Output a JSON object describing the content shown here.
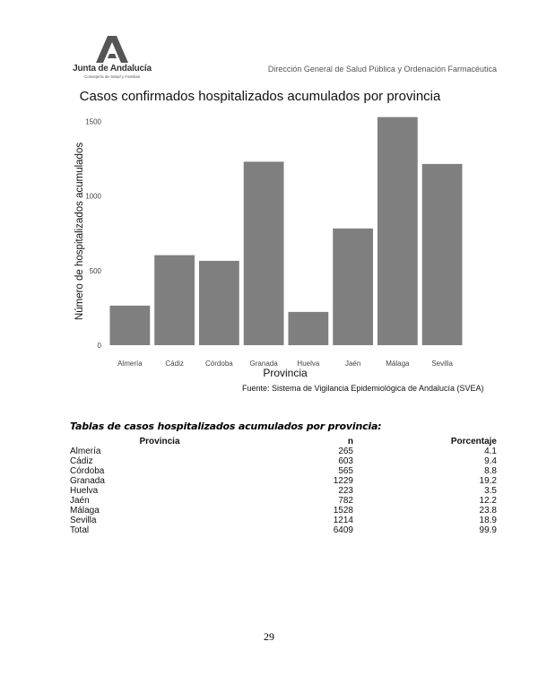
{
  "header": {
    "logo_name": "Junta de Andalucía",
    "logo_subtitle": "Consejería de Salud y Familias",
    "direction": "Dirección General de Salud Pública y Ordenación Farmacéutica"
  },
  "chart_data": {
    "type": "bar",
    "title": "Casos confirmados hospitalizados acumulados por provincia",
    "xlabel": "Provincia",
    "ylabel": "Número de hospitalizados acumulados",
    "categories": [
      "Almería",
      "Cádiz",
      "Córdoba",
      "Granada",
      "Huelva",
      "Jaén",
      "Málaga",
      "Sevilla"
    ],
    "values": [
      265,
      603,
      565,
      1229,
      223,
      782,
      1528,
      1214
    ],
    "ylim": [
      0,
      1600
    ],
    "yticks": [
      0,
      500,
      1000,
      1500
    ],
    "grid": false,
    "bar_color": "#7f7f7f",
    "source": "Fuente: Sistema de Vigilancia Epidemiológica de Andalucía (SVEA)"
  },
  "table": {
    "title": "Tablas de casos hospitalizados acumulados por provincia:",
    "headers": [
      "Provincia",
      "n",
      "Porcentaje"
    ],
    "rows": [
      [
        "Almería",
        "265",
        "4.1"
      ],
      [
        "Cádiz",
        "603",
        "9.4"
      ],
      [
        "Córdoba",
        "565",
        "8.8"
      ],
      [
        "Granada",
        "1229",
        "19.2"
      ],
      [
        "Huelva",
        "223",
        "3.5"
      ],
      [
        "Jaén",
        "782",
        "12.2"
      ],
      [
        "Málaga",
        "1528",
        "23.8"
      ],
      [
        "Sevilla",
        "1214",
        "18.9"
      ],
      [
        "Total",
        "6409",
        "99.9"
      ]
    ]
  },
  "page_number": "29"
}
